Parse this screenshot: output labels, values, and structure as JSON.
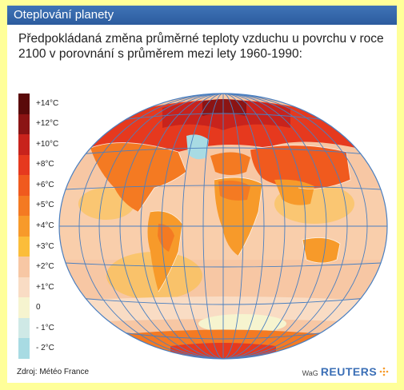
{
  "title": "Oteplování planety",
  "subtitle": "Předpokládaná změna průměrné teploty vzduchu u povrchu v roce 2100 v porovnání s průměrem mezi lety 1960-1990:",
  "legend": {
    "items": [
      {
        "label": "+14°C",
        "color": "#5a0a0a"
      },
      {
        "label": "+12°C",
        "color": "#8b1414"
      },
      {
        "label": "+10°C",
        "color": "#c8231c"
      },
      {
        "label": "+8°C",
        "color": "#e6391e"
      },
      {
        "label": "+6°C",
        "color": "#f05a1e"
      },
      {
        "label": "+5°C",
        "color": "#f47a22"
      },
      {
        "label": "+4°C",
        "color": "#f79a2a"
      },
      {
        "label": "+3°C",
        "color": "#fbbd3a"
      },
      {
        "label": "+2°C",
        "color": "#f7c7a4"
      },
      {
        "label": "+1°C",
        "color": "#f9dcc4"
      },
      {
        "label": "0",
        "color": "#f6f4cf"
      },
      {
        "label": "- 1°C",
        "color": "#cfe9e6"
      },
      {
        "label": "- 2°C",
        "color": "#a8dbe3"
      }
    ]
  },
  "source": "Zdroj: Météo France",
  "logo": {
    "prefix": "WaG",
    "brand": "REUTERS"
  },
  "colors": {
    "title_bar": "#3f73b7",
    "page_background": "#ffff99",
    "grid_lines": "#4a7fc0",
    "ocean_base": "#f7c7a4",
    "land_warm": "#f79a2a",
    "arctic": "#c8231c"
  }
}
